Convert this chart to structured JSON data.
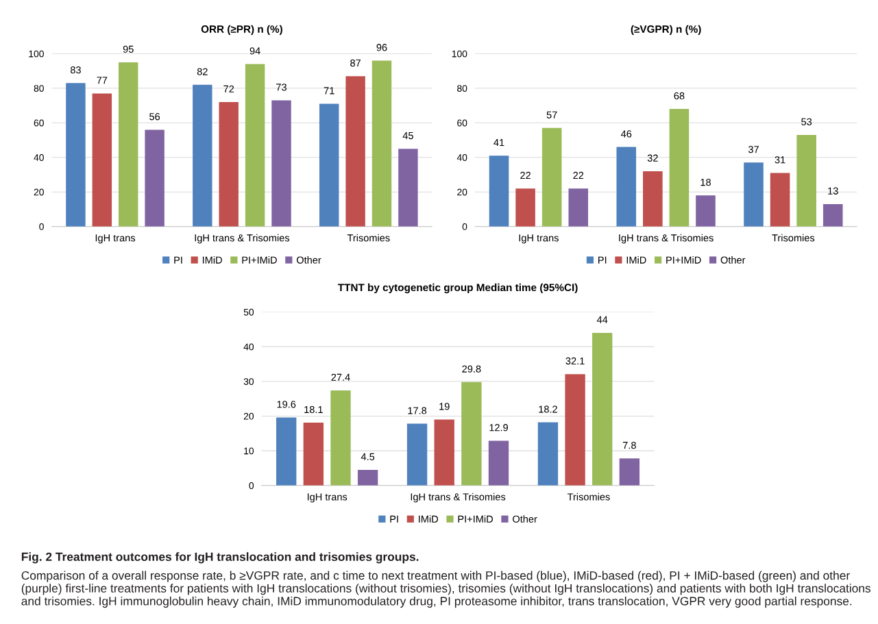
{
  "chart_data": [
    {
      "type": "bar",
      "title": "ORR (≥PR) n (%)",
      "categories": [
        "IgH trans",
        "IgH trans & Trisomies",
        "Trisomies"
      ],
      "ylim": [
        0,
        100
      ],
      "yticks": [
        0,
        20,
        40,
        60,
        80,
        100
      ],
      "grid": "y",
      "legend": "bottom",
      "data_labels": true,
      "series": [
        {
          "name": "PI",
          "color": "#4f81bd",
          "values": [
            83,
            82,
            71
          ]
        },
        {
          "name": "IMiD",
          "color": "#c0504d",
          "values": [
            77,
            72,
            87
          ]
        },
        {
          "name": "PI+IMiD",
          "color": "#9bbb59",
          "values": [
            95,
            94,
            96
          ]
        },
        {
          "name": "Other",
          "color": "#8064a2",
          "values": [
            56,
            73,
            45
          ]
        }
      ]
    },
    {
      "type": "bar",
      "title": "(≥VGPR) n (%)",
      "categories": [
        "IgH trans",
        "IgH trans & Trisomies",
        "Trisomies"
      ],
      "ylim": [
        0,
        100
      ],
      "yticks": [
        0,
        20,
        40,
        60,
        80,
        100
      ],
      "grid": "y",
      "legend": "bottom",
      "data_labels": true,
      "series": [
        {
          "name": "PI",
          "color": "#4f81bd",
          "values": [
            41,
            46,
            37
          ]
        },
        {
          "name": "IMiD",
          "color": "#c0504d",
          "values": [
            22,
            32,
            31
          ]
        },
        {
          "name": "PI+IMiD",
          "color": "#9bbb59",
          "values": [
            57,
            68,
            53
          ]
        },
        {
          "name": "Other",
          "color": "#8064a2",
          "values": [
            22,
            18,
            13
          ]
        }
      ]
    },
    {
      "type": "bar",
      "title": "TTNT by cytogenetic group Median time (95%CI)",
      "categories": [
        "IgH trans",
        "IgH trans & Trisomies",
        "Trisomies"
      ],
      "ylim": [
        0,
        50
      ],
      "yticks": [
        0,
        10,
        20,
        30,
        40,
        50
      ],
      "grid": "y",
      "legend": "bottom",
      "data_labels": true,
      "series": [
        {
          "name": "PI",
          "color": "#4f81bd",
          "values": [
            19.6,
            17.8,
            18.2
          ]
        },
        {
          "name": "IMiD",
          "color": "#c0504d",
          "values": [
            18.1,
            19,
            32.1
          ]
        },
        {
          "name": "PI+IMiD",
          "color": "#9bbb59",
          "values": [
            27.4,
            29.8,
            44
          ]
        },
        {
          "name": "Other",
          "color": "#8064a2",
          "values": [
            4.5,
            12.9,
            7.8
          ]
        }
      ],
      "annotations": [
        "Fig. 2 Treatment outcomes for IgH translocation and trisomies groups.",
        "Comparison of a overall response rate, b ≥VGPR rate, and c time to next treatment with PI-based (blue), IMiD-based (red), PI + IMiD-based (green) and other (purple) first-line treatments for patients with IgH translocations (without trisomies), trisomies (without IgH translocations) and patients with both IgH translocations and trisomies. IgH immunoglobulin heavy chain, IMiD immunomodulatory drug, PI proteasome inhibitor, trans translocation, VGPR very good partial response."
      ]
    }
  ]
}
